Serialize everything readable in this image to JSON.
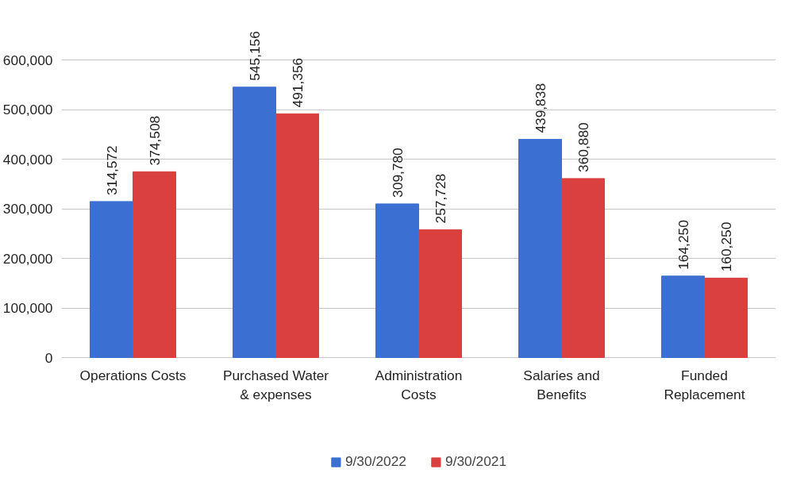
{
  "chart_data": {
    "type": "bar",
    "categories": [
      "Operations Costs",
      "Purchased Water\n& expenses",
      "Administration\nCosts",
      "Salaries and\nBenefits",
      "Funded\nReplacement"
    ],
    "series": [
      {
        "name": "9/30/2022",
        "color": "#3b6fd1",
        "values": [
          314572,
          545156,
          309780,
          439838,
          164250
        ],
        "value_labels": [
          "314,572",
          "545,156",
          "309,780",
          "439,838",
          "164,250"
        ]
      },
      {
        "name": "9/30/2021",
        "color": "#d9403f",
        "values": [
          374508,
          491356,
          257728,
          360880,
          160250
        ],
        "value_labels": [
          "374,508",
          "491,356",
          "257,728",
          "360,880",
          "160,250"
        ]
      }
    ],
    "ylim": [
      0,
      600000
    ],
    "yticks": [
      {
        "value": 0,
        "label": "0"
      },
      {
        "value": 100000,
        "label": "100,000"
      },
      {
        "value": 200000,
        "label": "200,000"
      },
      {
        "value": 300000,
        "label": "300,000"
      },
      {
        "value": 400000,
        "label": "400,000"
      },
      {
        "value": 500000,
        "label": "500,000"
      },
      {
        "value": 600000,
        "label": "600,000"
      }
    ],
    "grid": "y",
    "legend": "bottom"
  }
}
